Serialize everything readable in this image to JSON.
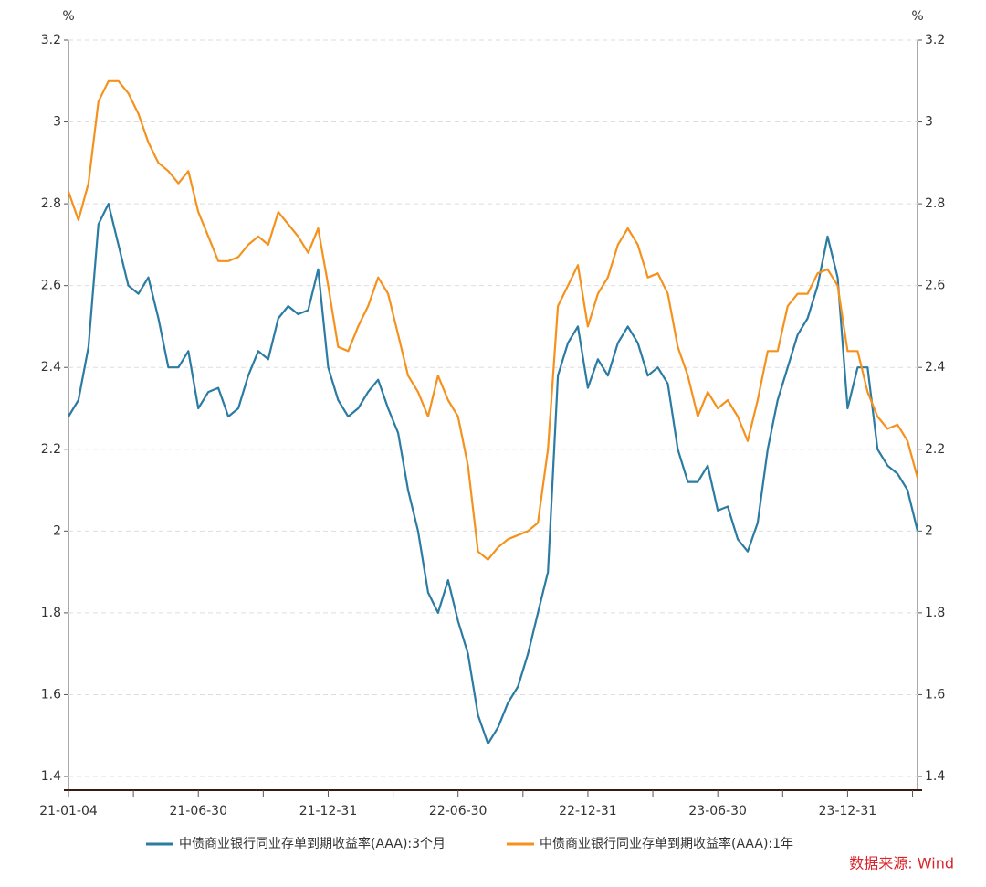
{
  "chart_data": {
    "type": "line",
    "y_unit": "%",
    "y2_unit": "%",
    "source": "数据来源: Wind",
    "categories": [
      "21-01-04",
      null,
      null,
      null,
      null,
      null,
      null,
      null,
      null,
      null,
      null,
      null,
      null,
      "21-06-30",
      null,
      null,
      null,
      null,
      null,
      null,
      null,
      null,
      null,
      null,
      null,
      null,
      "21-12-31",
      null,
      null,
      null,
      null,
      null,
      null,
      null,
      null,
      null,
      null,
      null,
      null,
      "22-06-30",
      null,
      null,
      null,
      null,
      null,
      null,
      null,
      null,
      null,
      null,
      null,
      null,
      "22-12-31",
      null,
      null,
      null,
      null,
      null,
      null,
      null,
      null,
      null,
      null,
      null,
      null,
      "23-06-30",
      null,
      null,
      null,
      null,
      null,
      null,
      null,
      null,
      null,
      null,
      null,
      null,
      "23-12-31",
      null,
      null,
      null,
      null,
      null,
      null,
      null
    ],
    "series": [
      {
        "name": "中债商业银行同业存单到期收益率(AAA):3个月",
        "color": "#2b7ba3",
        "values": [
          2.28,
          2.32,
          2.45,
          2.75,
          2.8,
          2.7,
          2.6,
          2.58,
          2.62,
          2.52,
          2.4,
          2.4,
          2.44,
          2.3,
          2.34,
          2.35,
          2.28,
          2.3,
          2.38,
          2.44,
          2.42,
          2.52,
          2.55,
          2.53,
          2.54,
          2.64,
          2.4,
          2.32,
          2.28,
          2.3,
          2.34,
          2.37,
          2.3,
          2.24,
          2.1,
          2.0,
          1.85,
          1.8,
          1.88,
          1.78,
          1.7,
          1.55,
          1.48,
          1.52,
          1.58,
          1.62,
          1.7,
          1.8,
          1.9,
          2.38,
          2.46,
          2.5,
          2.35,
          2.42,
          2.38,
          2.46,
          2.5,
          2.46,
          2.38,
          2.4,
          2.36,
          2.2,
          2.12,
          2.12,
          2.16,
          2.05,
          2.06,
          1.98,
          1.95,
          2.02,
          2.2,
          2.32,
          2.4,
          2.48,
          2.52,
          2.6,
          2.72,
          2.62,
          2.3,
          2.4,
          2.4,
          2.2,
          2.16,
          2.14,
          2.1,
          2.0
        ]
      },
      {
        "name": "中债商业银行同业存单到期收益率(AAA):1年",
        "color": "#f5921e",
        "axis": "y2",
        "values": [
          2.83,
          2.76,
          2.85,
          3.05,
          3.1,
          3.1,
          3.07,
          3.02,
          2.95,
          2.9,
          2.88,
          2.85,
          2.88,
          2.78,
          2.72,
          2.66,
          2.66,
          2.67,
          2.7,
          2.72,
          2.7,
          2.78,
          2.75,
          2.72,
          2.68,
          2.74,
          2.6,
          2.45,
          2.44,
          2.5,
          2.55,
          2.62,
          2.58,
          2.48,
          2.38,
          2.34,
          2.28,
          2.38,
          2.32,
          2.28,
          2.16,
          1.95,
          1.93,
          1.96,
          1.98,
          1.99,
          2.0,
          2.02,
          2.2,
          2.55,
          2.6,
          2.65,
          2.5,
          2.58,
          2.62,
          2.7,
          2.74,
          2.7,
          2.62,
          2.63,
          2.58,
          2.45,
          2.38,
          2.28,
          2.34,
          2.3,
          2.32,
          2.28,
          2.22,
          2.32,
          2.44,
          2.44,
          2.55,
          2.58,
          2.58,
          2.63,
          2.64,
          2.6,
          2.44,
          2.44,
          2.34,
          2.28,
          2.25,
          2.26,
          2.22,
          2.13
        ]
      }
    ],
    "ylim": [
      1.4,
      3.2
    ],
    "yticks": [
      1.4,
      1.6,
      1.8,
      2,
      2.2,
      2.4,
      2.6,
      2.8,
      3,
      3.2
    ],
    "y2lim": [
      1.4,
      3.2
    ],
    "y2ticks": [
      1.4,
      1.6,
      1.8,
      2,
      2.2,
      2.4,
      2.6,
      2.8,
      3,
      3.2
    ],
    "grid": true,
    "legend": "bottom"
  }
}
